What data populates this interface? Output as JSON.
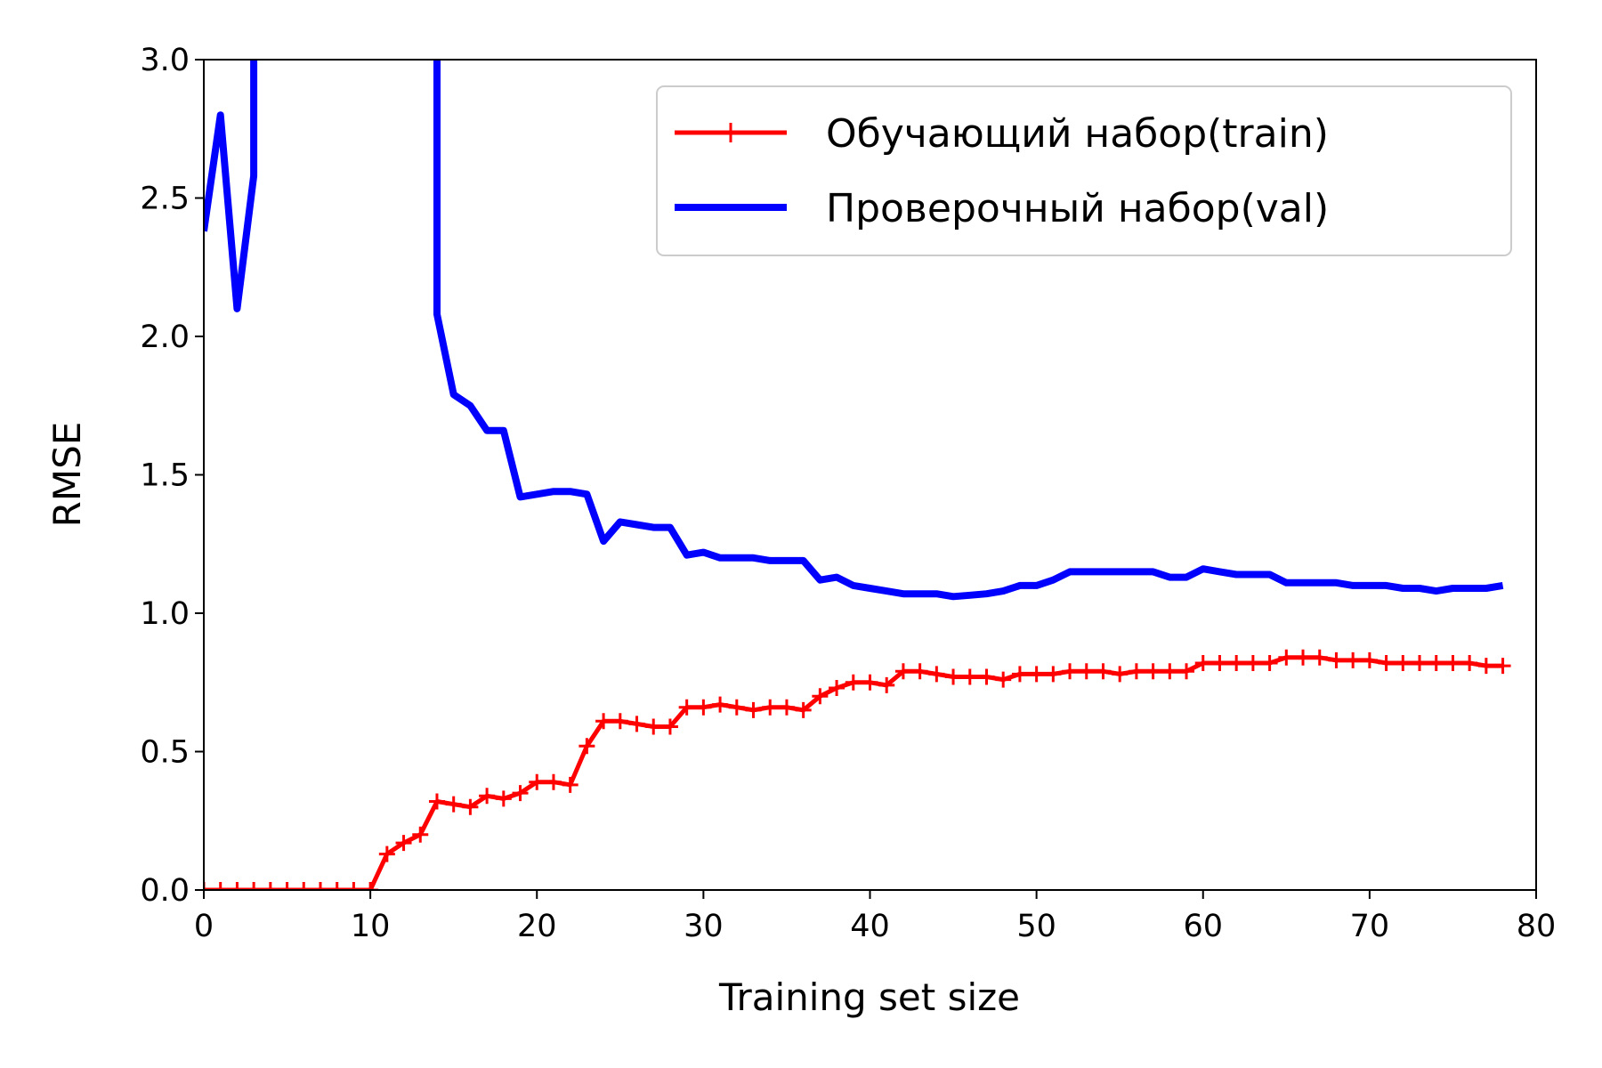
{
  "chart_data": {
    "type": "line",
    "xlabel": "Training set size",
    "ylabel": "RMSE",
    "xlim": [
      0,
      80
    ],
    "ylim": [
      0,
      3.0
    ],
    "xticks": [
      "0",
      "10",
      "20",
      "30",
      "40",
      "50",
      "60",
      "70",
      "80"
    ],
    "yticks": [
      "0.0",
      "0.5",
      "1.0",
      "1.5",
      "2.0",
      "2.5",
      "3.0"
    ],
    "grid": false,
    "legend_position": "top-right",
    "series": [
      {
        "name": "Обучающий набор(train)",
        "color": "#ff0000",
        "marker": "plus",
        "x": [
          0,
          1,
          2,
          3,
          4,
          5,
          6,
          7,
          8,
          9,
          10,
          11,
          12,
          13,
          14,
          15,
          16,
          17,
          18,
          19,
          20,
          21,
          22,
          23,
          24,
          25,
          26,
          27,
          28,
          29,
          30,
          31,
          32,
          33,
          34,
          35,
          36,
          37,
          38,
          39,
          40,
          41,
          42,
          43,
          44,
          45,
          46,
          47,
          48,
          49,
          50,
          51,
          52,
          53,
          54,
          55,
          56,
          57,
          58,
          59,
          60,
          61,
          62,
          63,
          64,
          65,
          66,
          67,
          68,
          69,
          70,
          71,
          72,
          73,
          74,
          75,
          76,
          77,
          78
        ],
        "y": [
          0,
          0,
          0,
          0,
          0,
          0,
          0,
          0,
          0,
          0,
          0,
          0.13,
          0.17,
          0.2,
          0.32,
          0.31,
          0.3,
          0.34,
          0.33,
          0.35,
          0.39,
          0.39,
          0.38,
          0.52,
          0.61,
          0.61,
          0.6,
          0.59,
          0.59,
          0.66,
          0.66,
          0.67,
          0.66,
          0.65,
          0.66,
          0.66,
          0.65,
          0.7,
          0.73,
          0.75,
          0.75,
          0.74,
          0.79,
          0.79,
          0.78,
          0.77,
          0.77,
          0.77,
          0.76,
          0.78,
          0.78,
          0.78,
          0.79,
          0.79,
          0.79,
          0.78,
          0.79,
          0.79,
          0.79,
          0.79,
          0.82,
          0.82,
          0.82,
          0.82,
          0.82,
          0.84,
          0.84,
          0.84,
          0.83,
          0.83,
          0.83,
          0.82,
          0.82,
          0.82,
          0.82,
          0.82,
          0.82,
          0.81,
          0.81
        ]
      },
      {
        "name": "Проверочный набор(val)",
        "color": "#0000ff",
        "marker": "none",
        "x": [
          0,
          1,
          2,
          3,
          3,
          14,
          14,
          15,
          16,
          17,
          18,
          19,
          20,
          21,
          22,
          23,
          24,
          25,
          26,
          27,
          28,
          29,
          30,
          31,
          32,
          33,
          34,
          35,
          36,
          37,
          38,
          39,
          40,
          41,
          42,
          43,
          44,
          45,
          46,
          47,
          48,
          49,
          50,
          51,
          52,
          53,
          54,
          55,
          56,
          57,
          58,
          59,
          60,
          61,
          62,
          63,
          64,
          65,
          66,
          67,
          68,
          69,
          70,
          71,
          72,
          73,
          74,
          75,
          76,
          77,
          78
        ],
        "y": [
          2.38,
          2.8,
          2.1,
          2.58,
          3.5,
          3.5,
          2.08,
          1.79,
          1.75,
          1.66,
          1.66,
          1.42,
          1.43,
          1.44,
          1.44,
          1.43,
          1.26,
          1.33,
          1.32,
          1.31,
          1.31,
          1.21,
          1.22,
          1.2,
          1.2,
          1.2,
          1.19,
          1.19,
          1.19,
          1.12,
          1.13,
          1.1,
          1.09,
          1.08,
          1.07,
          1.07,
          1.07,
          1.06,
          1.065,
          1.07,
          1.08,
          1.1,
          1.1,
          1.12,
          1.15,
          1.15,
          1.15,
          1.15,
          1.15,
          1.15,
          1.13,
          1.13,
          1.16,
          1.15,
          1.14,
          1.14,
          1.14,
          1.11,
          1.11,
          1.11,
          1.11,
          1.1,
          1.1,
          1.1,
          1.09,
          1.09,
          1.08,
          1.09,
          1.09,
          1.09,
          1.1
        ]
      }
    ]
  }
}
